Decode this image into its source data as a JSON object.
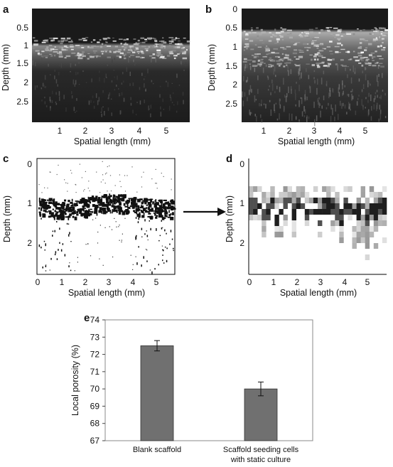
{
  "figure": {
    "panels": [
      {
        "id": "a",
        "label": "a",
        "ylabel": "Depth (mm)",
        "xlabel": "Spatial length (mm)",
        "yticks": [
          "0.5",
          "1",
          "1.5",
          "2",
          "2.5"
        ],
        "xticks": [
          "1",
          "2",
          "3",
          "4",
          "5"
        ]
      },
      {
        "id": "b",
        "label": "b",
        "ylabel": "Depth (mm)",
        "xlabel": "Spatial length (mm)",
        "yticks": [
          "0",
          "0.5",
          "1",
          "1.5",
          "2",
          "2.5"
        ],
        "xticks": [
          "1",
          "2",
          "3",
          "4",
          "5"
        ]
      },
      {
        "id": "c",
        "label": "c",
        "ylabel": "Depth (mm)",
        "xlabel": "Spatial length (mm)",
        "yticks": [
          "0",
          "1",
          "2"
        ],
        "xticks": [
          "0",
          "1",
          "2",
          "3",
          "4",
          "5"
        ]
      },
      {
        "id": "d",
        "label": "d",
        "ylabel": "Depth (mm)",
        "xlabel": "Spatial length (mm)",
        "yticks": [
          "0",
          "1",
          "2"
        ],
        "xticks": [
          "0",
          "1",
          "2",
          "3",
          "4",
          "5"
        ]
      }
    ]
  },
  "chart_data": {
    "type": "bar",
    "label": "e",
    "categories": [
      "Blank scaffold",
      "Scaffold seeding cells with static culture"
    ],
    "category_lines": [
      [
        "Blank scaffold"
      ],
      [
        "Scaffold seeding cells",
        "with static culture"
      ]
    ],
    "values": [
      72.5,
      70.0
    ],
    "errors": [
      0.3,
      0.4
    ],
    "ylabel": "Local porosity (%)",
    "ylim": [
      67,
      74
    ],
    "yticks": [
      "67",
      "68",
      "69",
      "70",
      "71",
      "72",
      "73",
      "74"
    ],
    "bar_color": "#707070"
  }
}
